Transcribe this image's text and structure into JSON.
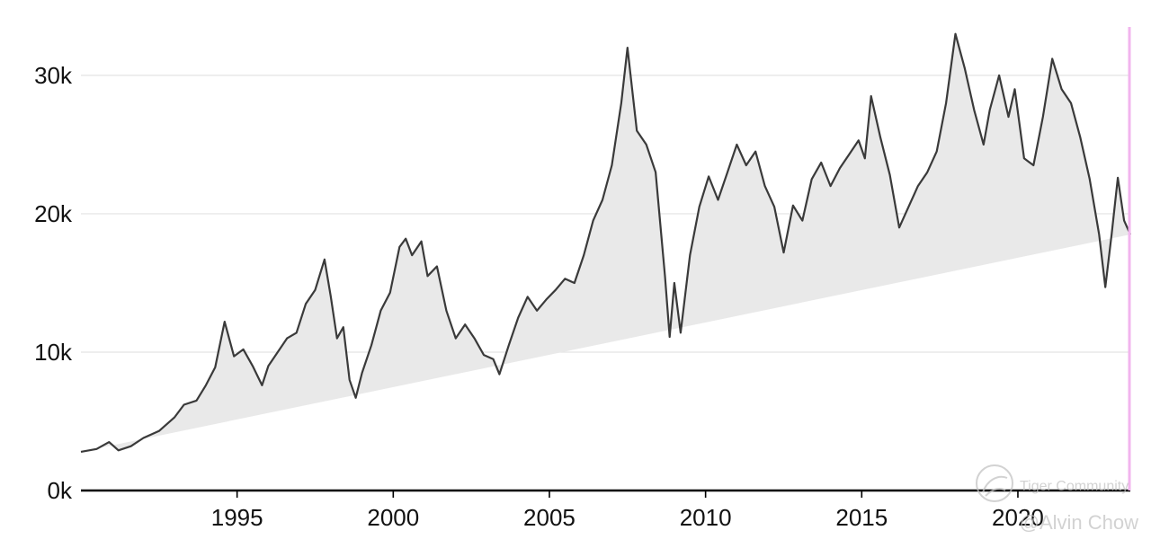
{
  "chart_data": {
    "type": "area",
    "title": "",
    "xlabel": "",
    "ylabel": "",
    "x_ticks": [
      1995,
      2000,
      2005,
      2010,
      2015,
      2020
    ],
    "y_ticks": [
      0,
      10000,
      20000,
      30000
    ],
    "y_tick_labels": [
      "0k",
      "10k",
      "20k",
      "30k"
    ],
    "xlim": [
      1990.0,
      2023.6
    ],
    "ylim": [
      0,
      33500
    ],
    "grid": "horizontal",
    "colors": {
      "line": "#3a3a3a",
      "fill": "#e9e9e9",
      "grid": "#e3e3e3",
      "marker": "#f2b5ee"
    },
    "series": [
      {
        "values": [
          [
            1990.0,
            2800
          ],
          [
            1990.5,
            3000
          ],
          [
            1990.9,
            3500
          ],
          [
            1991.2,
            2900
          ],
          [
            1991.6,
            3200
          ],
          [
            1992.0,
            3800
          ],
          [
            1992.5,
            4300
          ],
          [
            1993.0,
            5300
          ],
          [
            1993.3,
            6200
          ],
          [
            1993.7,
            6500
          ],
          [
            1994.0,
            7600
          ],
          [
            1994.3,
            8900
          ],
          [
            1994.6,
            12200
          ],
          [
            1994.9,
            9700
          ],
          [
            1995.2,
            10200
          ],
          [
            1995.5,
            9000
          ],
          [
            1995.8,
            7600
          ],
          [
            1996.0,
            9000
          ],
          [
            1996.3,
            10000
          ],
          [
            1996.6,
            11000
          ],
          [
            1996.9,
            11400
          ],
          [
            1997.2,
            13500
          ],
          [
            1997.5,
            14500
          ],
          [
            1997.8,
            16700
          ],
          [
            1998.0,
            14000
          ],
          [
            1998.2,
            11000
          ],
          [
            1998.4,
            11800
          ],
          [
            1998.6,
            8000
          ],
          [
            1998.8,
            6700
          ],
          [
            1999.0,
            8500
          ],
          [
            1999.3,
            10500
          ],
          [
            1999.6,
            13000
          ],
          [
            1999.9,
            14300
          ],
          [
            2000.2,
            17600
          ],
          [
            2000.4,
            18200
          ],
          [
            2000.6,
            17000
          ],
          [
            2000.9,
            18000
          ],
          [
            2001.1,
            15500
          ],
          [
            2001.4,
            16200
          ],
          [
            2001.7,
            13000
          ],
          [
            2002.0,
            11000
          ],
          [
            2002.3,
            12000
          ],
          [
            2002.6,
            11000
          ],
          [
            2002.9,
            9800
          ],
          [
            2003.2,
            9500
          ],
          [
            2003.4,
            8400
          ],
          [
            2003.7,
            10500
          ],
          [
            2004.0,
            12500
          ],
          [
            2004.3,
            14000
          ],
          [
            2004.6,
            13000
          ],
          [
            2004.9,
            13800
          ],
          [
            2005.2,
            14500
          ],
          [
            2005.5,
            15300
          ],
          [
            2005.8,
            15000
          ],
          [
            2006.1,
            17000
          ],
          [
            2006.4,
            19500
          ],
          [
            2006.7,
            21000
          ],
          [
            2007.0,
            23500
          ],
          [
            2007.3,
            28000
          ],
          [
            2007.5,
            32000
          ],
          [
            2007.8,
            26000
          ],
          [
            2008.1,
            25000
          ],
          [
            2008.4,
            23000
          ],
          [
            2008.7,
            15500
          ],
          [
            2008.85,
            11100
          ],
          [
            2009.0,
            15000
          ],
          [
            2009.2,
            11400
          ],
          [
            2009.5,
            17000
          ],
          [
            2009.8,
            20500
          ],
          [
            2010.1,
            22700
          ],
          [
            2010.4,
            21000
          ],
          [
            2010.7,
            23000
          ],
          [
            2011.0,
            25000
          ],
          [
            2011.3,
            23500
          ],
          [
            2011.6,
            24500
          ],
          [
            2011.9,
            22000
          ],
          [
            2012.2,
            20500
          ],
          [
            2012.5,
            17200
          ],
          [
            2012.8,
            20600
          ],
          [
            2013.1,
            19500
          ],
          [
            2013.4,
            22500
          ],
          [
            2013.7,
            23700
          ],
          [
            2014.0,
            22000
          ],
          [
            2014.3,
            23300
          ],
          [
            2014.6,
            24300
          ],
          [
            2014.9,
            25300
          ],
          [
            2015.1,
            24000
          ],
          [
            2015.3,
            28500
          ],
          [
            2015.6,
            25500
          ],
          [
            2015.9,
            22800
          ],
          [
            2016.2,
            19000
          ],
          [
            2016.5,
            20500
          ],
          [
            2016.8,
            22000
          ],
          [
            2017.1,
            23000
          ],
          [
            2017.4,
            24500
          ],
          [
            2017.7,
            28000
          ],
          [
            2018.0,
            33000
          ],
          [
            2018.3,
            30500
          ],
          [
            2018.6,
            27500
          ],
          [
            2018.9,
            25000
          ],
          [
            2019.1,
            27500
          ],
          [
            2019.4,
            30000
          ],
          [
            2019.7,
            27000
          ],
          [
            2019.9,
            29000
          ],
          [
            2020.2,
            24000
          ],
          [
            2020.5,
            23500
          ],
          [
            2020.8,
            27000
          ],
          [
            2021.1,
            31200
          ],
          [
            2021.4,
            29000
          ],
          [
            2021.7,
            28000
          ],
          [
            2022.0,
            25500
          ],
          [
            2022.3,
            22500
          ],
          [
            2022.6,
            18500
          ],
          [
            2022.8,
            14700
          ],
          [
            2023.0,
            18500
          ],
          [
            2023.2,
            22600
          ],
          [
            2023.4,
            19500
          ],
          [
            2023.6,
            18500
          ]
        ]
      }
    ]
  },
  "watermark": {
    "community_text": "Tiger Community",
    "author_text": "@Alvin Chow"
  }
}
